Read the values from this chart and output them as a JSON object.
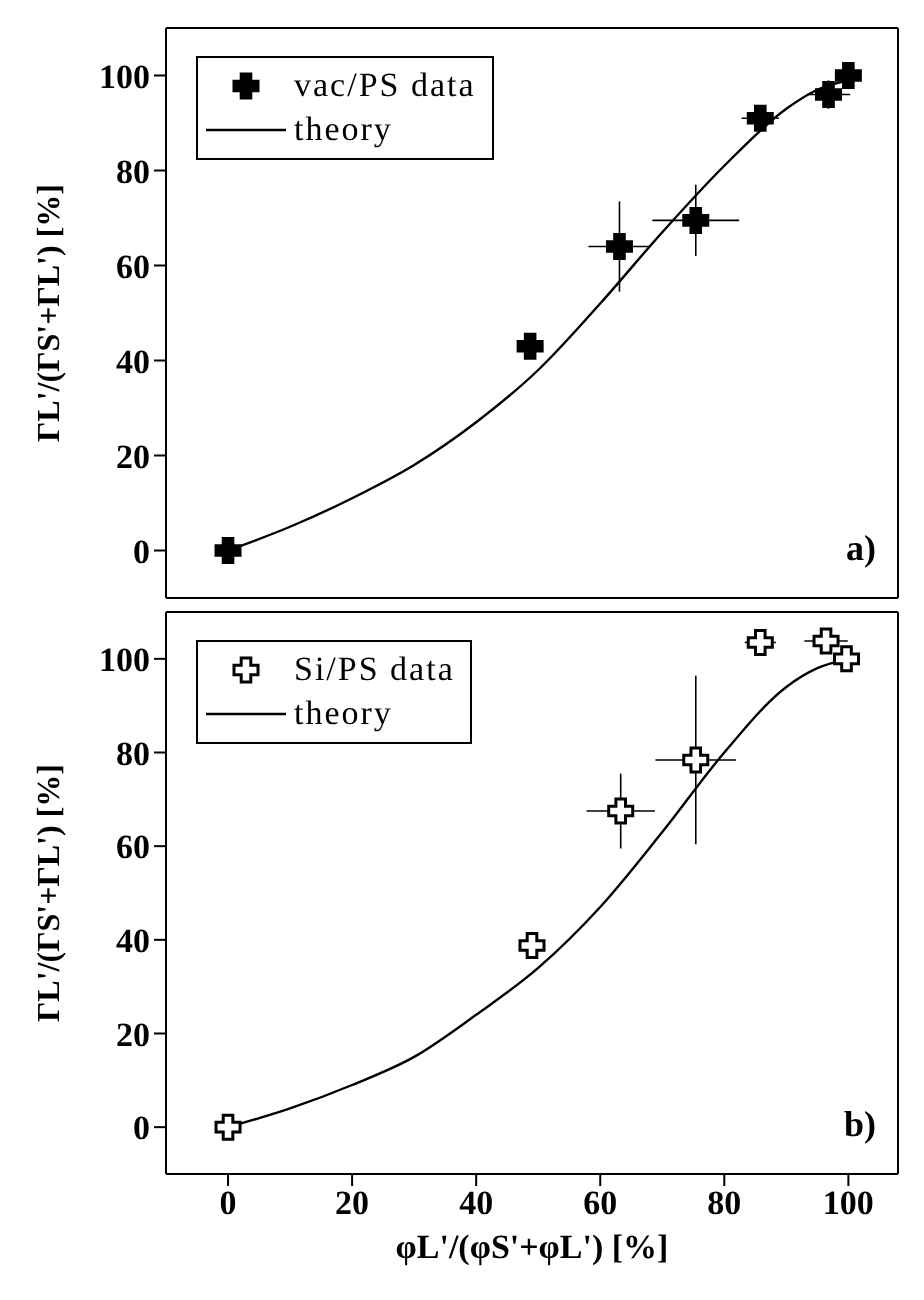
{
  "chart_data": [
    {
      "type": "scatter",
      "ylabel": "ΓL'/(ΓS'+ΓL') [%]",
      "xlim": [
        -10,
        108
      ],
      "xticks": [
        0,
        20,
        40,
        60,
        80,
        100
      ],
      "ylim": [
        -10,
        110
      ],
      "yticks": [
        0,
        20,
        40,
        60,
        80,
        100
      ],
      "tick_labels": "y",
      "grid": false,
      "legend": "top left",
      "annotations": [
        "a)"
      ],
      "series": [
        {
          "name": "vac/PS data",
          "marker": "cross",
          "color": "#000000",
          "x": [
            0,
            48.7,
            63.1,
            75.4,
            85.8,
            96.8,
            100
          ],
          "values": [
            0,
            43,
            64,
            69.5,
            91,
            96,
            100
          ],
          "errors": [
            null,
            2,
            9.5,
            7.5,
            2,
            3,
            null
          ],
          "xerrors": [
            null,
            2,
            5,
            7,
            3,
            3.5,
            null
          ]
        },
        {
          "name": "theory",
          "type": "line",
          "color": "#000000",
          "x": [
            0,
            10,
            20,
            30,
            40,
            50,
            60,
            70,
            80,
            90,
            95,
            100
          ],
          "values": [
            0,
            5,
            11,
            18,
            27,
            38,
            52,
            67,
            81,
            93,
            97,
            99
          ]
        }
      ]
    },
    {
      "type": "scatter",
      "xlabel": "φL'/(φS'+φL') [%]",
      "ylabel": "ΓL'/(ΓS'+ΓL') [%]",
      "xlim": [
        -10,
        108
      ],
      "xticks": [
        0,
        20,
        40,
        60,
        80,
        100
      ],
      "ylim": [
        -10,
        110
      ],
      "yticks": [
        0,
        20,
        40,
        60,
        80,
        100
      ],
      "grid": false,
      "legend": "top left",
      "annotations": [
        "b)"
      ],
      "series": [
        {
          "name": "Si/PS data",
          "marker": "cross",
          "color": "#000000",
          "x": [
            0,
            49,
            63.3,
            75.4,
            85.8,
            96.4,
            99.7
          ],
          "values": [
            0,
            38.8,
            67.5,
            78.4,
            103.5,
            103.8,
            100
          ],
          "errors": [
            null,
            2,
            8,
            18,
            2,
            2,
            null
          ],
          "xerrors": [
            null,
            2,
            5.5,
            6.5,
            2.5,
            3.5,
            null
          ]
        },
        {
          "name": "theory",
          "type": "line",
          "color": "#000000",
          "x": [
            0,
            10,
            20,
            30,
            40,
            50,
            60,
            70,
            80,
            90,
            95,
            100
          ],
          "values": [
            0,
            4,
            9,
            15,
            24,
            34,
            47,
            63,
            80,
            94,
            98,
            100
          ]
        }
      ]
    }
  ]
}
